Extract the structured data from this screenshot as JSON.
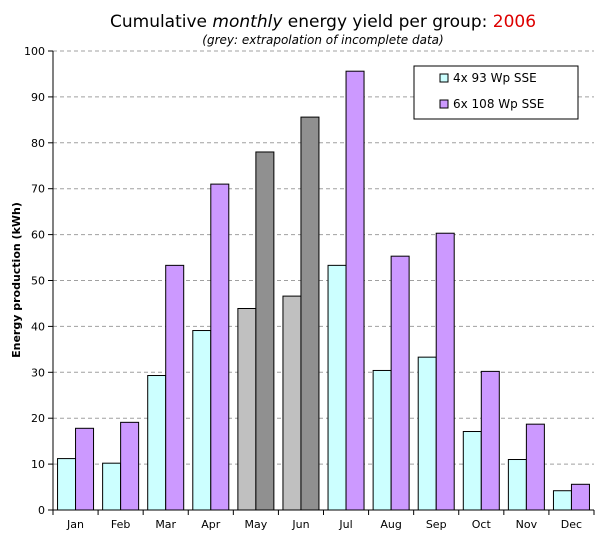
{
  "chart_data": {
    "type": "bar",
    "title": {
      "prefix": "Cumulative ",
      "emphasis": "monthly",
      "middle": " energy yield per group: ",
      "year": "2006",
      "year_color": "#dd0000"
    },
    "subtitle": "(grey: extrapolation of incomplete data)",
    "xlabel": "",
    "ylabel": "Energy production (kWh)",
    "ylim": [
      0,
      100
    ],
    "ytick_step": 10,
    "grid": "horizontal dashed",
    "legend_position": "top-right",
    "categories": [
      "Jan",
      "Feb",
      "Mar",
      "Apr",
      "May",
      "Jun",
      "Jul",
      "Aug",
      "Sep",
      "Oct",
      "Nov",
      "Dec"
    ],
    "extrapolated_months": [
      "May",
      "Jun"
    ],
    "extrapolated_colors": [
      "#c0c0c0",
      "#909090"
    ],
    "series": [
      {
        "name": "4x 93 Wp SSE",
        "color": "#ccffff",
        "values": [
          11.2,
          10.2,
          29.3,
          39.1,
          43.9,
          46.6,
          53.3,
          30.4,
          33.3,
          17.1,
          11.0,
          4.2
        ]
      },
      {
        "name": "6x 108 Wp SSE",
        "color": "#cc99ff",
        "values": [
          17.8,
          19.1,
          53.3,
          71.0,
          78.0,
          85.6,
          95.6,
          55.3,
          60.3,
          30.2,
          18.7,
          5.6
        ]
      }
    ]
  }
}
